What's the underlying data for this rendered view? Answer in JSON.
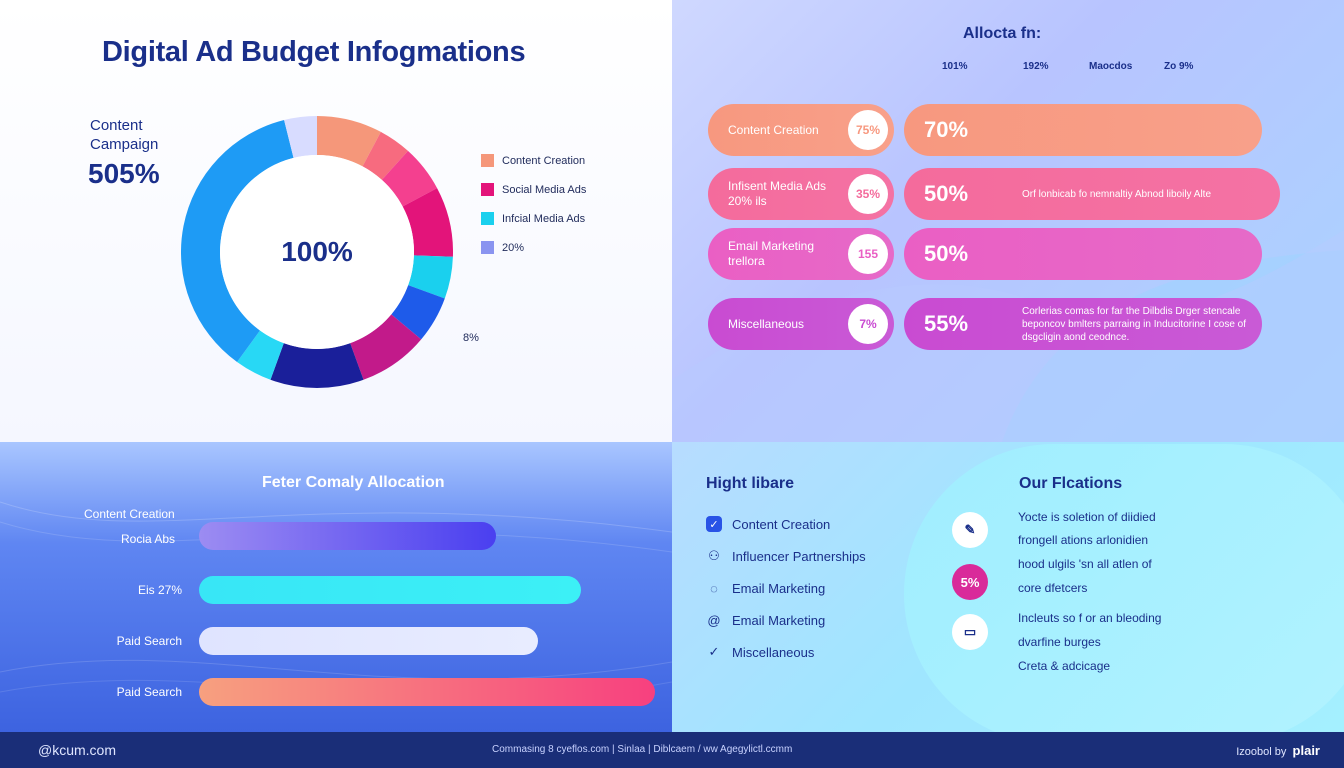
{
  "title": "Digital Ad Budget Infogmations",
  "donut": {
    "side_label": "Content Campaign",
    "side_value": "505%",
    "center_value": "100%",
    "stray_label": "8%"
  },
  "legend": [
    {
      "label": "Content Creation",
      "color": "#f5977a"
    },
    {
      "label": "Social Media Ads",
      "color": "#e3147a"
    },
    {
      "label": "Infcial Media Ads",
      "color": "#1ad0ee"
    },
    {
      "label": "20%",
      "color": "#8a94f0"
    }
  ],
  "allocation": {
    "title": "Allocta fn:",
    "columns": [
      "101%",
      "192%",
      "Maocdos",
      "Zo 9%"
    ],
    "rows": [
      {
        "label": "Content Creation",
        "badge": "75%",
        "value": "70%",
        "note": "",
        "color_a": "#f7987f",
        "color_b": "#f8a08a"
      },
      {
        "label": "Infisent Media Ads 20% ils",
        "badge": "35%",
        "value": "50%",
        "note": "Orf lonbicab fo nemnaltiy Abnod liboily Alte",
        "color_a": "#f46b9c",
        "color_b": "#f472a4"
      },
      {
        "label": "Email Marketing trellora",
        "badge": "155",
        "value": "50%",
        "note": "",
        "color_a": "#ea5fc4",
        "color_b": "#e66ac8"
      },
      {
        "label": "Miscellaneous",
        "badge": "7%",
        "value": "55%",
        "note": "Corlerias comas for far the Dilbdis Drger stencale beponcov bmlters parraing in Inducitorine I cose of dsgcligin aond ceodnce.",
        "color_a": "#c94bd2",
        "color_b": "#c95ad6"
      }
    ]
  },
  "bar_section": {
    "title": "Feter Comaly Allocation"
  },
  "chart_data": {
    "type": "bar",
    "orientation": "horizontal",
    "title": "Feter Comaly Allocation",
    "categories": [
      "Content Creation / Rocia Abs",
      "Eis 27%",
      "Paid Search",
      "Paid Search"
    ],
    "values": [
      56,
      72,
      64,
      86
    ],
    "xlim": [
      0,
      100
    ],
    "colors": [
      [
        "#9c8cf2",
        "#4a3ff0"
      ],
      [
        "#38e6f6",
        "#3cf0f6"
      ],
      [
        "#dfe4ff",
        "#e8ecff"
      ],
      [
        "#f7a07f",
        "#f7407f"
      ]
    ],
    "label_lines": [
      [
        "Content Creation",
        "Rocia Abs"
      ],
      [
        "Eis 27%"
      ],
      [
        "Paid Search"
      ],
      [
        "Paid Search"
      ]
    ]
  },
  "highlights": {
    "title": "Hight libare",
    "items": [
      {
        "icon": "check-icon",
        "glyph": "✓",
        "label": "Content Creation"
      },
      {
        "icon": "people-icon",
        "glyph": "⚇",
        "label": "Influencer Partnerships"
      },
      {
        "icon": "mail-icon",
        "glyph": "◌",
        "label": "Email Marketing"
      },
      {
        "icon": "at-icon",
        "glyph": "@",
        "label": "Email Marketing"
      },
      {
        "icon": "checkmark-icon",
        "glyph": "✓",
        "label": "Miscellaneous"
      }
    ]
  },
  "offerings": {
    "title": "Our Flcations",
    "items": [
      {
        "icon": "pen-icon",
        "badge": "✎",
        "badge_bg": "#ffffff",
        "badge_color": "#1a2f8a",
        "lines": [
          "Yocte is soletion of diidied"
        ]
      },
      {
        "icon": "",
        "badge": "",
        "badge_bg": "",
        "badge_color": "",
        "lines": [
          "frongell ations arlonidien",
          "hood ulgils 'sn all atlen of",
          "core dfetcers"
        ]
      },
      {
        "icon": "percent-badge",
        "badge": "5%",
        "badge_bg": "#d92a9a",
        "badge_color": "#ffffff",
        "lines": []
      },
      {
        "icon": "card-icon",
        "badge": "▭",
        "badge_bg": "#ffffff",
        "badge_color": "#1a2f8a",
        "lines": [
          "Incleuts so f or an bleoding",
          "dvarfine burges",
          "Creta & adcicage"
        ]
      }
    ]
  },
  "footer": {
    "left": "@kcum.com",
    "mid": "Commasing 8 cyeflos.com  |  Sinlaa  |  Diblcaem  /  ww Agegylictl.ccmm",
    "right_prefix": "Izoobol by",
    "right_logo": "plair"
  }
}
